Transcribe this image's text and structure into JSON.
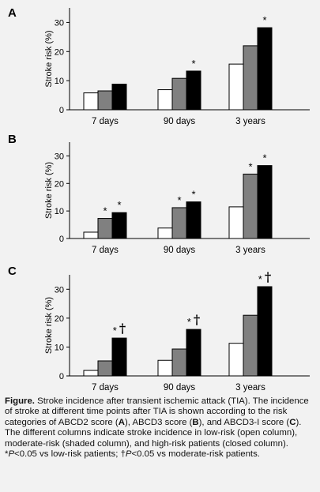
{
  "chart_data": [
    {
      "type": "bar",
      "panel": "A",
      "ylabel": "Stroke risk (%)",
      "ylim": [
        0,
        35
      ],
      "yticks": [
        0,
        10,
        20,
        30
      ],
      "categories": [
        "7 days",
        "90 days",
        "3 years"
      ],
      "series": [
        {
          "fill": "#ffffff",
          "values": [
            5.8,
            6.9,
            15.7
          ]
        },
        {
          "fill": "#808080",
          "values": [
            6.5,
            10.8,
            22.0
          ]
        },
        {
          "fill": "#000000",
          "values": [
            8.8,
            13.3,
            28.2
          ]
        }
      ],
      "annotations": [
        {
          "category": 1,
          "series": 2,
          "text": "*"
        },
        {
          "category": 2,
          "series": 2,
          "text": "*"
        }
      ]
    },
    {
      "type": "bar",
      "panel": "B",
      "ylabel": "Stroke risk (%)",
      "ylim": [
        0,
        35
      ],
      "yticks": [
        0,
        10,
        20,
        30
      ],
      "categories": [
        "7 days",
        "90 days",
        "3 years"
      ],
      "series": [
        {
          "fill": "#ffffff",
          "values": [
            2.3,
            3.8,
            11.5
          ]
        },
        {
          "fill": "#808080",
          "values": [
            7.3,
            11.2,
            23.4
          ]
        },
        {
          "fill": "#000000",
          "values": [
            9.4,
            13.3,
            26.5
          ]
        }
      ],
      "annotations": [
        {
          "category": 0,
          "series": 1,
          "text": "*"
        },
        {
          "category": 0,
          "series": 2,
          "text": "*"
        },
        {
          "category": 1,
          "series": 1,
          "text": "*"
        },
        {
          "category": 1,
          "series": 2,
          "text": "*"
        },
        {
          "category": 2,
          "series": 1,
          "text": "*"
        },
        {
          "category": 2,
          "series": 2,
          "text": "*"
        }
      ]
    },
    {
      "type": "bar",
      "panel": "C",
      "ylabel": "Stroke risk (%)",
      "ylim": [
        0,
        35
      ],
      "yticks": [
        0,
        10,
        20,
        30
      ],
      "categories": [
        "7 days",
        "90 days",
        "3 years"
      ],
      "series": [
        {
          "fill": "#ffffff",
          "values": [
            1.9,
            5.4,
            11.3
          ]
        },
        {
          "fill": "#808080",
          "values": [
            5.2,
            9.3,
            21.0
          ]
        },
        {
          "fill": "#000000",
          "values": [
            13.1,
            16.1,
            30.9
          ]
        }
      ],
      "annotations": [
        {
          "category": 0,
          "series": 2,
          "text": "* †"
        },
        {
          "category": 1,
          "series": 2,
          "text": "* †"
        },
        {
          "category": 2,
          "series": 2,
          "text": "* †"
        }
      ]
    }
  ],
  "caption": {
    "label": "Figure.",
    "title": " Stroke incidence after transient ischemic attack (TIA).",
    "body_1": " The incidence of stroke at different time points after TIA is shown according to the risk categories of ABCD2 score (",
    "bold_a": "A",
    "body_2": "), ABCD3 score (",
    "bold_b": "B",
    "body_3": "), and ABCD3-I score (",
    "bold_c": "C",
    "body_4": "). The different columns indicate stroke incidence in low-risk (open column), moderate-risk (shaded column), and high-risk patients (closed column).",
    "note_1_prefix": "*",
    "note_1_p": "P",
    "note_1_text": "<0.05 vs low-risk patients; †",
    "note_2_p": "P",
    "note_2_text": "<0.05 vs moderate-risk patients."
  }
}
